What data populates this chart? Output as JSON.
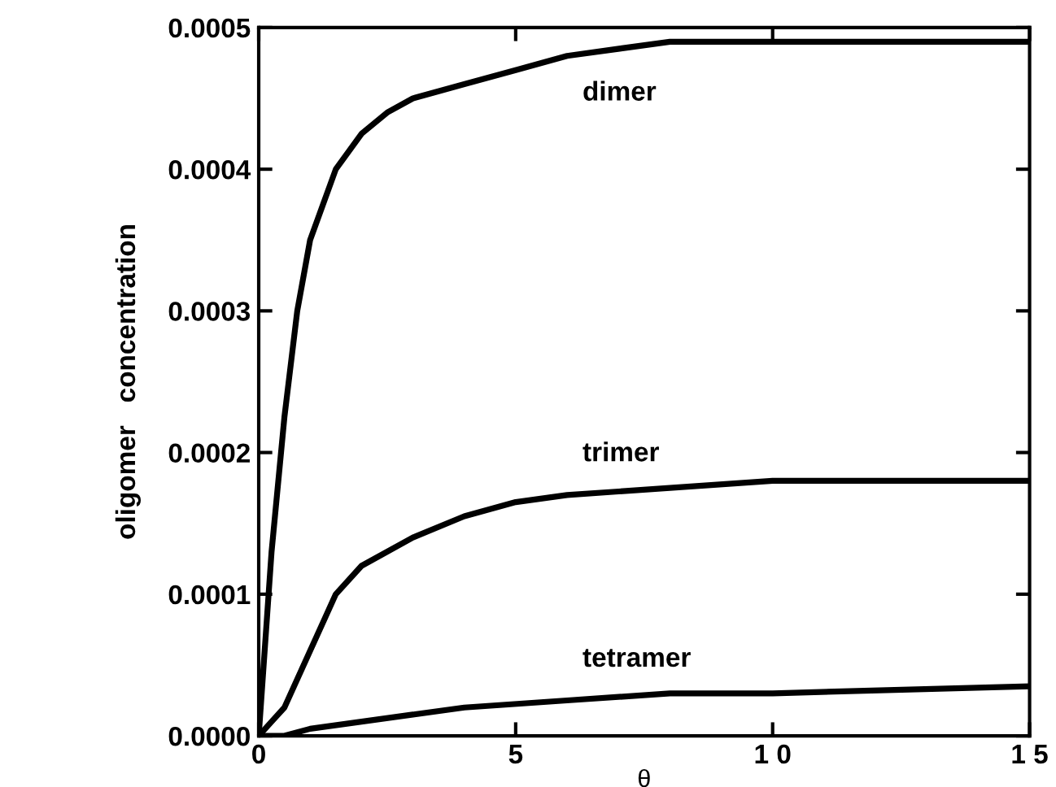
{
  "chart_data": {
    "type": "line",
    "xlabel": "θ",
    "ylabel": "oligomer   concentration",
    "xlim": [
      0,
      15
    ],
    "ylim": [
      0,
      0.0005
    ],
    "xticks": [
      0,
      5,
      {
        "value": 10,
        "label": "1 0"
      },
      {
        "value": 15,
        "label": "1 5"
      }
    ],
    "yticks": [
      {
        "value": 0,
        "label": "0.0000"
      },
      {
        "value": 0.0001,
        "label": "0.0001"
      },
      {
        "value": 0.0002,
        "label": "0.0002"
      },
      {
        "value": 0.0003,
        "label": "0.0003"
      },
      {
        "value": 0.0004,
        "label": "0.0004"
      },
      {
        "value": 0.0005,
        "label": "0.0005"
      }
    ],
    "grid": false,
    "legend": false,
    "marker": "none",
    "line_style": "solid",
    "series": [
      {
        "name": "dimer",
        "color": "#000000",
        "x": [
          0,
          0.25,
          0.5,
          0.75,
          1,
          1.5,
          2,
          2.5,
          3,
          4,
          5,
          6,
          8,
          10,
          15
        ],
        "values": [
          0,
          0.00013,
          0.000225,
          0.0003,
          0.00035,
          0.0004,
          0.000425,
          0.00044,
          0.00045,
          0.00046,
          0.00047,
          0.00048,
          0.00049,
          0.00049,
          0.00049
        ]
      },
      {
        "name": "trimer",
        "color": "#000000",
        "x": [
          0,
          0.25,
          0.5,
          1,
          1.5,
          2,
          3,
          4,
          5,
          6,
          8,
          10,
          15
        ],
        "values": [
          0,
          1e-05,
          2e-05,
          6e-05,
          0.0001,
          0.00012,
          0.00014,
          0.000155,
          0.000165,
          0.00017,
          0.000175,
          0.00018,
          0.00018
        ]
      },
      {
        "name": "tetramer",
        "color": "#000000",
        "x": [
          0,
          0.5,
          1,
          2,
          3,
          4,
          6,
          8,
          10,
          15
        ],
        "values": [
          0,
          0,
          5e-06,
          1e-05,
          1.5e-05,
          2e-05,
          2.5e-05,
          3e-05,
          3e-05,
          3.5e-05
        ]
      }
    ]
  }
}
